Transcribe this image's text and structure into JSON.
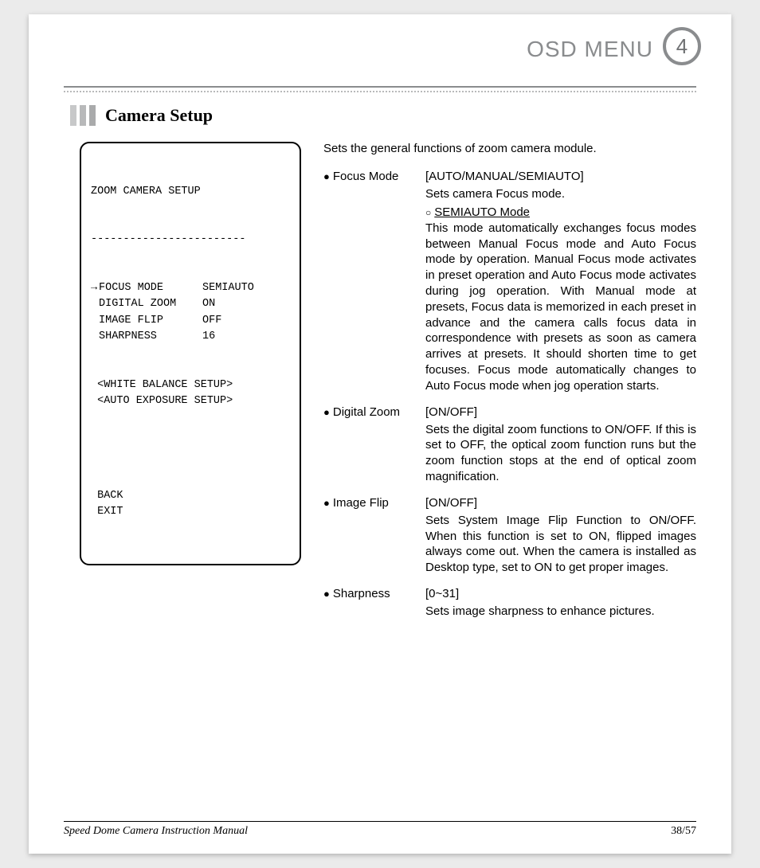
{
  "header": {
    "title": "OSD MENU",
    "chapter_number": "4"
  },
  "section": {
    "heading": "Camera Setup"
  },
  "osd_box": {
    "title": "ZOOM CAMERA SETUP",
    "divider": "------------------------",
    "rows": [
      {
        "arrow": "→",
        "label": "FOCUS MODE",
        "value": "SEMIAUTO"
      },
      {
        "arrow": " ",
        "label": "DIGITAL ZOOM",
        "value": "ON"
      },
      {
        "arrow": " ",
        "label": "IMAGE FLIP",
        "value": "OFF"
      },
      {
        "arrow": " ",
        "label": "SHARPNESS",
        "value": "16"
      }
    ],
    "submenus": [
      "<WHITE BALANCE SETUP>",
      "<AUTO EXPOSURE SETUP>"
    ],
    "footer_items": [
      "BACK",
      "EXIT"
    ]
  },
  "body": {
    "intro": "Sets the general functions of zoom camera module.",
    "items": [
      {
        "label": "Focus Mode",
        "options": "[AUTO/MANUAL/SEMIAUTO]",
        "short_desc": "Sets camera Focus mode.",
        "sub_mode_label": "SEMIAUTO Mode",
        "desc": "This mode automatically exchanges focus modes between Manual Focus mode and Auto Focus mode by operation. Manual Focus mode activates in preset operation and Auto Focus mode activates during jog operation. With Manual mode at presets, Focus data is memorized in each preset in advance and the camera calls focus data in correspondence with presets as soon as camera arrives at presets. It should shorten time to get focuses. Focus mode automatically changes to Auto Focus mode when jog operation starts."
      },
      {
        "label": "Digital Zoom",
        "options": "[ON/OFF]",
        "desc": "Sets the digital zoom functions to ON/OFF. If this is set to OFF, the optical zoom function runs but the zoom function stops at the end of optical zoom magnification."
      },
      {
        "label": "Image Flip",
        "options": "[ON/OFF]",
        "desc": "Sets System Image Flip Function to ON/OFF. When this function is set to ON, flipped images always come out. When the camera is installed as Desktop type, set to ON to get proper images."
      },
      {
        "label": "Sharpness",
        "options": "[0~31]",
        "desc": "Sets image sharpness to enhance pictures."
      }
    ]
  },
  "footer": {
    "left": "Speed Dome Camera Instruction Manual",
    "right": "38/57"
  }
}
